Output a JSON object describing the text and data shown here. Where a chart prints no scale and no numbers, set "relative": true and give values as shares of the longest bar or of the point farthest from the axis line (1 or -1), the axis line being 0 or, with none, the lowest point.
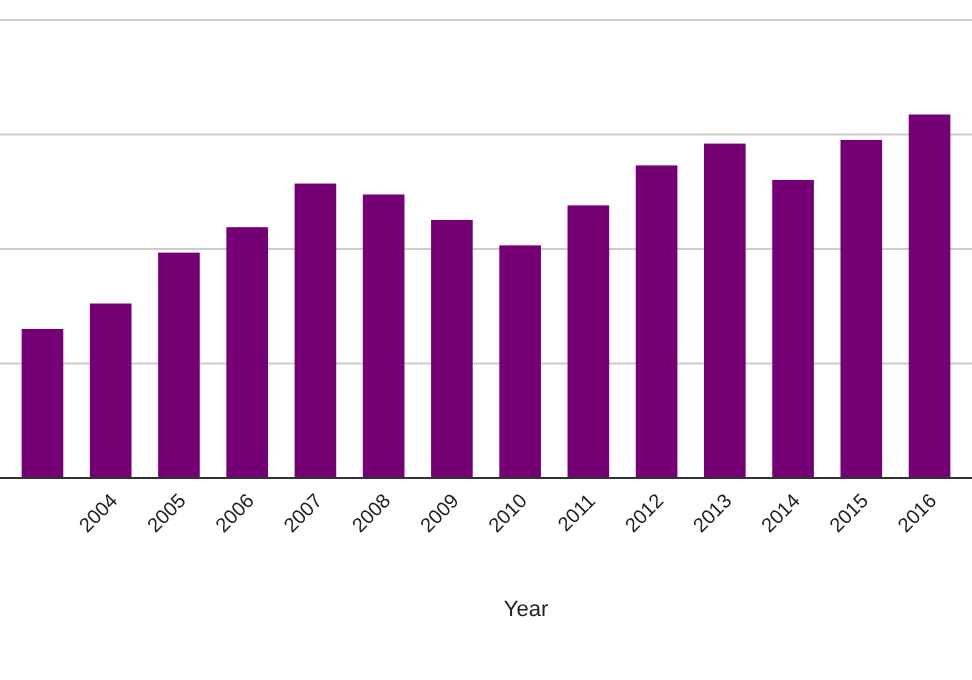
{
  "chart_data": {
    "type": "bar",
    "xlabel": "Year",
    "relative": true,
    "grid": true,
    "color": "#750075",
    "categories": [
      null,
      "2004",
      "2005",
      "2006",
      "2007",
      "2008",
      "2009",
      "2010",
      "2011",
      "2012",
      "2013",
      "2014",
      "2015",
      "2016"
    ],
    "values": [
      0.41,
      0.48,
      0.62,
      0.69,
      0.81,
      0.78,
      0.71,
      0.64,
      0.75,
      0.86,
      0.92,
      0.82,
      0.93,
      1
    ]
  }
}
